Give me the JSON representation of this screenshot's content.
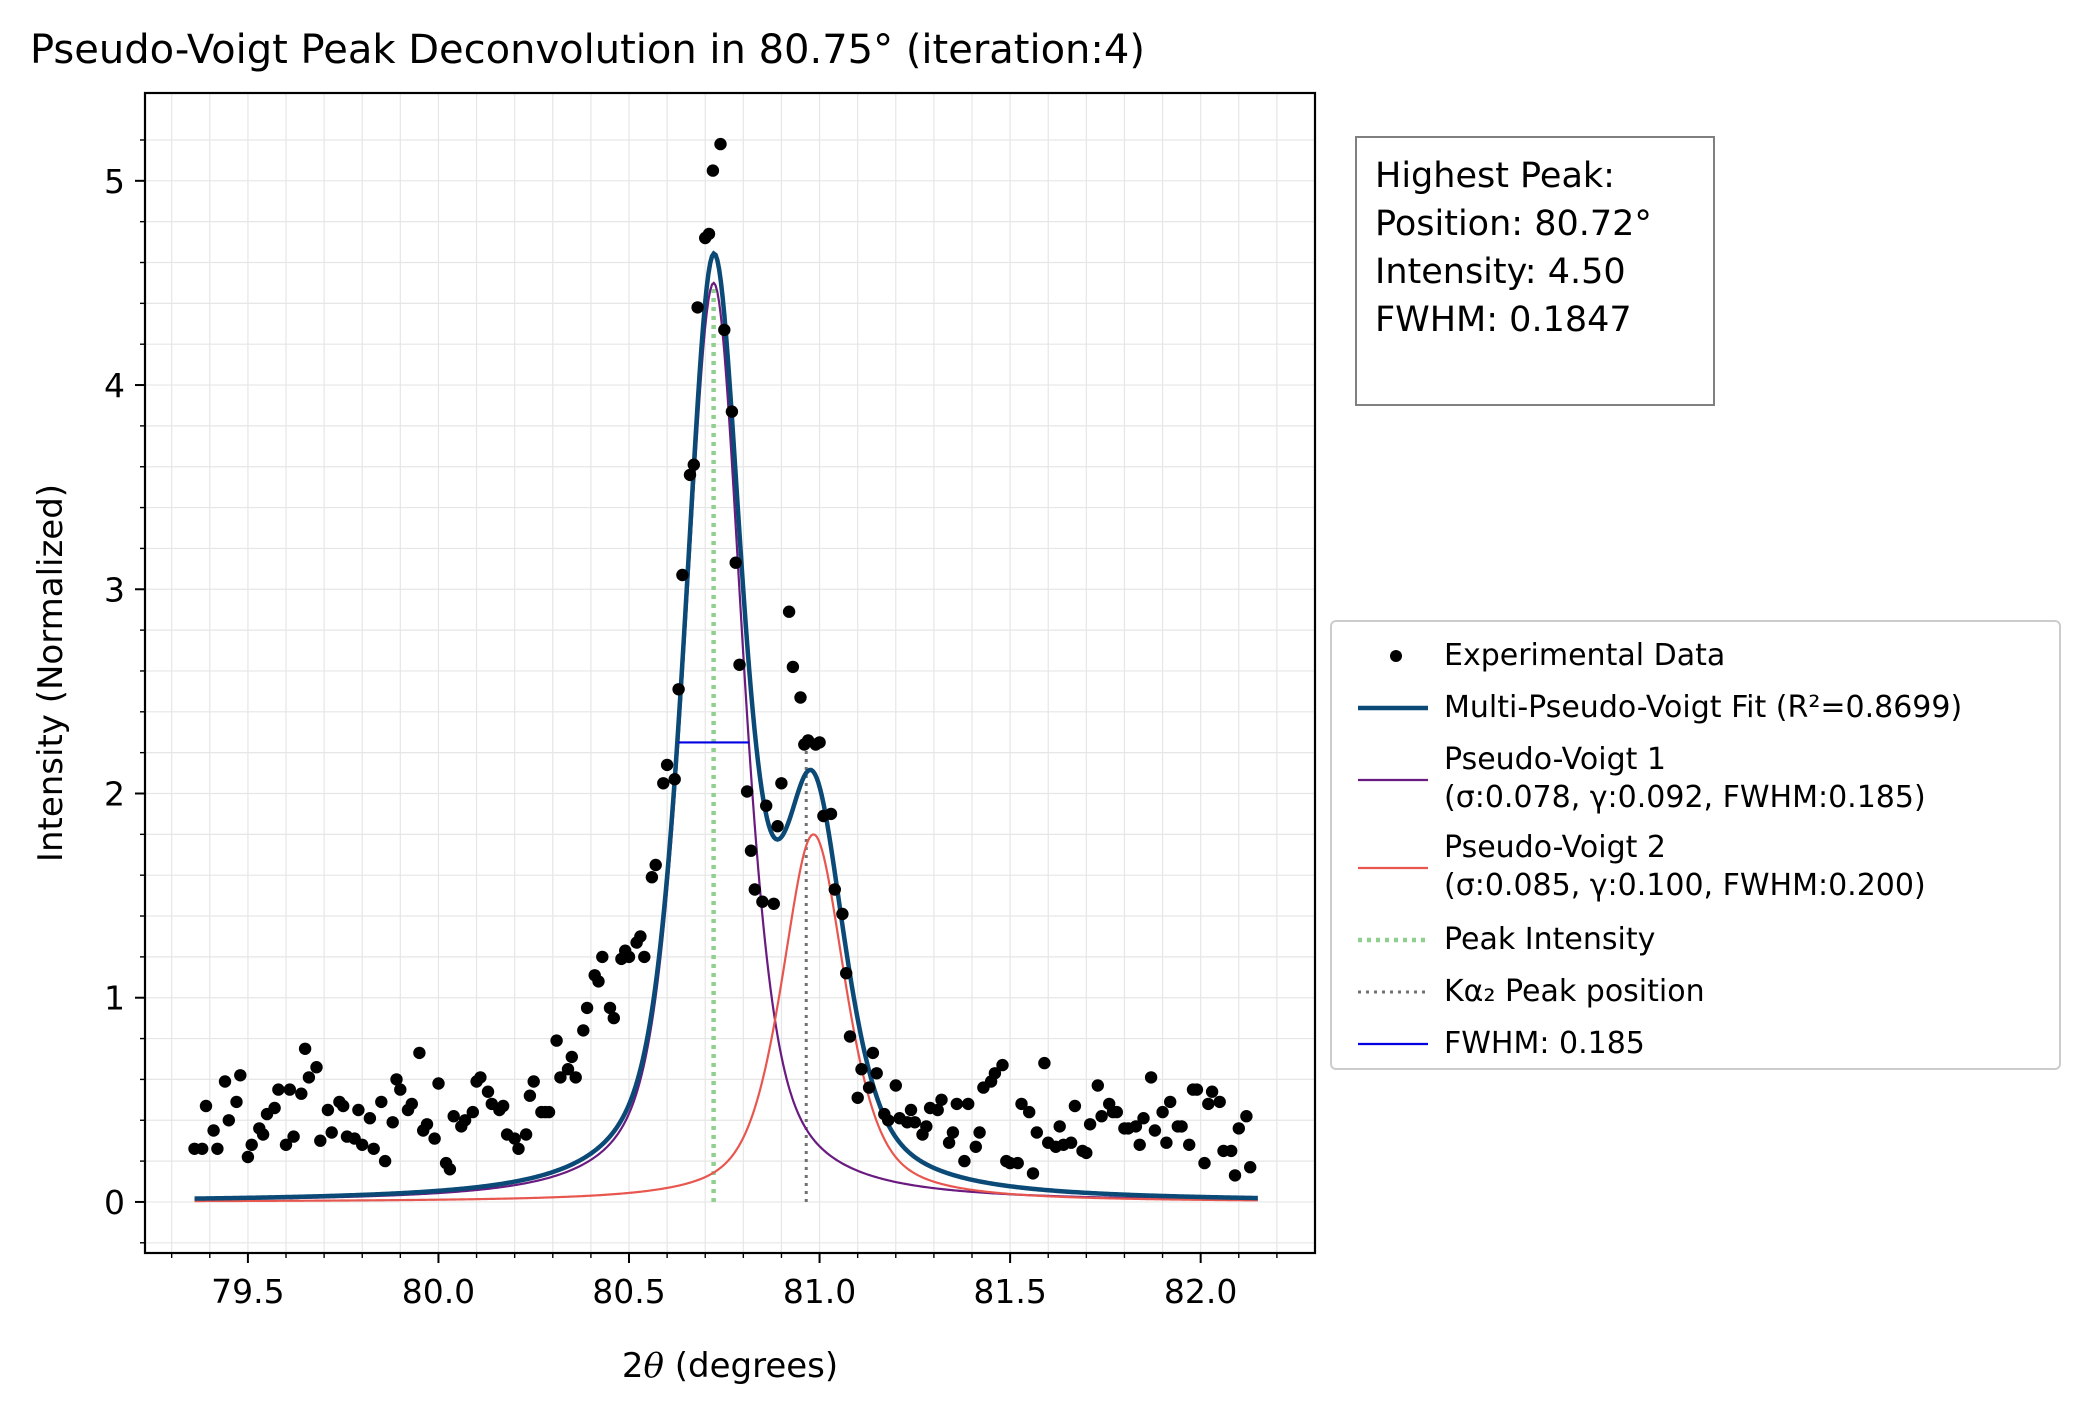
{
  "title": "Pseudo-Voigt Peak Deconvolution in 80.75° (iteration:4)",
  "info_box": {
    "lines": [
      "Highest Peak:",
      "Position: 80.72°",
      "Intensity: 4.50",
      "FWHM: 0.1847"
    ]
  },
  "legend": {
    "items": [
      {
        "label": "Experimental Data",
        "kind": "marker",
        "color": "#000000"
      },
      {
        "label": "Multi-Pseudo-Voigt Fit (R²=0.8699)",
        "kind": "line",
        "color": "#0b4a77"
      },
      {
        "label": "Pseudo-Voigt 1",
        "label2": "(σ:0.078, γ:0.092, FWHM:0.185)",
        "kind": "line",
        "color": "#6a1b7f"
      },
      {
        "label": "Pseudo-Voigt 2",
        "label2": "(σ:0.085, γ:0.100, FWHM:0.200)",
        "kind": "line",
        "color": "#e8574f"
      },
      {
        "label": "Peak Intensity",
        "kind": "dotted",
        "color": "#8fd08f"
      },
      {
        "label": "Kα₂ Peak position",
        "kind": "dotted",
        "color": "#707070"
      },
      {
        "label": "FWHM: 0.185",
        "kind": "line",
        "color": "#0000e0"
      }
    ]
  },
  "chart_data": {
    "type": "scatter",
    "title": "Pseudo-Voigt Peak Deconvolution in 80.75° (iteration:4)",
    "xlabel": "2θ (degrees)",
    "ylabel": "Intensity (Normalized)",
    "xlim": [
      79.23,
      82.3
    ],
    "ylim": [
      -0.25,
      5.43
    ],
    "x_ticks": [
      79.5,
      80.0,
      80.5,
      81.0,
      81.5,
      82.0
    ],
    "x_tick_labels": [
      "79.5",
      "80.0",
      "80.5",
      "81.0",
      "81.5",
      "82.0"
    ],
    "y_ticks": [
      0,
      1,
      2,
      3,
      4,
      5
    ],
    "y_tick_labels": [
      "0",
      "1",
      "2",
      "3",
      "4",
      "5"
    ],
    "grid": true,
    "legend_position": "right, outside",
    "scatter": {
      "name": "Experimental Data",
      "color": "#000000",
      "points": [
        [
          79.36,
          0.26
        ],
        [
          79.38,
          0.26
        ],
        [
          79.39,
          0.47
        ],
        [
          79.41,
          0.35
        ],
        [
          79.42,
          0.26
        ],
        [
          79.44,
          0.59
        ],
        [
          79.45,
          0.4
        ],
        [
          79.47,
          0.49
        ],
        [
          79.48,
          0.62
        ],
        [
          79.5,
          0.22
        ],
        [
          79.51,
          0.28
        ],
        [
          79.53,
          0.36
        ],
        [
          79.54,
          0.33
        ],
        [
          79.55,
          0.43
        ],
        [
          79.57,
          0.46
        ],
        [
          79.58,
          0.55
        ],
        [
          79.6,
          0.28
        ],
        [
          79.61,
          0.55
        ],
        [
          79.62,
          0.32
        ],
        [
          79.64,
          0.53
        ],
        [
          79.65,
          0.75
        ],
        [
          79.66,
          0.61
        ],
        [
          79.68,
          0.66
        ],
        [
          79.69,
          0.3
        ],
        [
          79.71,
          0.45
        ],
        [
          79.72,
          0.34
        ],
        [
          79.74,
          0.49
        ],
        [
          79.75,
          0.47
        ],
        [
          79.76,
          0.32
        ],
        [
          79.78,
          0.31
        ],
        [
          79.79,
          0.45
        ],
        [
          79.8,
          0.28
        ],
        [
          79.82,
          0.41
        ],
        [
          79.83,
          0.26
        ],
        [
          79.85,
          0.49
        ],
        [
          79.86,
          0.2
        ],
        [
          79.88,
          0.39
        ],
        [
          79.89,
          0.6
        ],
        [
          79.9,
          0.55
        ],
        [
          79.92,
          0.45
        ],
        [
          79.93,
          0.48
        ],
        [
          79.95,
          0.73
        ],
        [
          79.96,
          0.35
        ],
        [
          79.97,
          0.38
        ],
        [
          79.99,
          0.31
        ],
        [
          80.0,
          0.58
        ],
        [
          80.02,
          0.19
        ],
        [
          80.03,
          0.16
        ],
        [
          80.04,
          0.42
        ],
        [
          80.06,
          0.37
        ],
        [
          80.07,
          0.4
        ],
        [
          80.09,
          0.44
        ],
        [
          80.1,
          0.59
        ],
        [
          80.11,
          0.61
        ],
        [
          80.13,
          0.54
        ],
        [
          80.14,
          0.48
        ],
        [
          80.16,
          0.45
        ],
        [
          80.17,
          0.47
        ],
        [
          80.18,
          0.33
        ],
        [
          80.2,
          0.31
        ],
        [
          80.21,
          0.26
        ],
        [
          80.23,
          0.33
        ],
        [
          80.24,
          0.52
        ],
        [
          80.25,
          0.59
        ],
        [
          80.27,
          0.44
        ],
        [
          80.28,
          0.44
        ],
        [
          80.29,
          0.44
        ],
        [
          80.31,
          0.79
        ],
        [
          80.32,
          0.61
        ],
        [
          80.34,
          0.65
        ],
        [
          80.35,
          0.71
        ],
        [
          80.36,
          0.61
        ],
        [
          80.38,
          0.84
        ],
        [
          80.39,
          0.95
        ],
        [
          80.41,
          1.11
        ],
        [
          80.42,
          1.08
        ],
        [
          80.43,
          1.2
        ],
        [
          80.45,
          0.95
        ],
        [
          80.46,
          0.9
        ],
        [
          80.48,
          1.19
        ],
        [
          80.49,
          1.23
        ],
        [
          80.5,
          1.2
        ],
        [
          80.52,
          1.27
        ],
        [
          80.53,
          1.3
        ],
        [
          80.54,
          1.2
        ],
        [
          80.56,
          1.59
        ],
        [
          80.57,
          1.65
        ],
        [
          80.59,
          2.05
        ],
        [
          80.6,
          2.14
        ],
        [
          80.62,
          2.07
        ],
        [
          80.63,
          2.51
        ],
        [
          80.64,
          3.07
        ],
        [
          80.66,
          3.56
        ],
        [
          80.67,
          3.61
        ],
        [
          80.68,
          4.38
        ],
        [
          80.7,
          4.72
        ],
        [
          80.71,
          4.74
        ],
        [
          80.72,
          5.05
        ],
        [
          80.74,
          5.18
        ],
        [
          80.75,
          4.27
        ],
        [
          80.77,
          3.87
        ],
        [
          80.78,
          3.13
        ],
        [
          80.79,
          2.63
        ],
        [
          80.81,
          2.01
        ],
        [
          80.82,
          1.72
        ],
        [
          80.83,
          1.53
        ],
        [
          80.85,
          1.47
        ],
        [
          80.86,
          1.94
        ],
        [
          80.88,
          1.46
        ],
        [
          80.89,
          1.84
        ],
        [
          80.9,
          2.05
        ],
        [
          80.92,
          2.89
        ],
        [
          80.93,
          2.62
        ],
        [
          80.95,
          2.47
        ],
        [
          80.96,
          2.24
        ],
        [
          80.97,
          2.26
        ],
        [
          80.99,
          2.24
        ],
        [
          81.0,
          2.25
        ],
        [
          81.01,
          1.89
        ],
        [
          81.03,
          1.9
        ],
        [
          81.04,
          1.53
        ],
        [
          81.06,
          1.41
        ],
        [
          81.07,
          1.12
        ],
        [
          81.08,
          0.81
        ],
        [
          81.1,
          0.51
        ],
        [
          81.11,
          0.65
        ],
        [
          81.13,
          0.56
        ],
        [
          81.14,
          0.73
        ],
        [
          81.15,
          0.63
        ],
        [
          81.17,
          0.43
        ],
        [
          81.18,
          0.4
        ],
        [
          81.2,
          0.57
        ],
        [
          81.21,
          0.41
        ],
        [
          81.23,
          0.39
        ],
        [
          81.24,
          0.45
        ],
        [
          81.25,
          0.39
        ],
        [
          81.27,
          0.33
        ],
        [
          81.28,
          0.37
        ],
        [
          81.29,
          0.46
        ],
        [
          81.31,
          0.45
        ],
        [
          81.32,
          0.5
        ],
        [
          81.34,
          0.29
        ],
        [
          81.35,
          0.34
        ],
        [
          81.36,
          0.48
        ],
        [
          81.38,
          0.2
        ],
        [
          81.39,
          0.48
        ],
        [
          81.41,
          0.27
        ],
        [
          81.42,
          0.34
        ],
        [
          81.43,
          0.56
        ],
        [
          81.45,
          0.59
        ],
        [
          81.46,
          0.63
        ],
        [
          81.48,
          0.67
        ],
        [
          81.49,
          0.2
        ],
        [
          81.5,
          0.19
        ],
        [
          81.52,
          0.19
        ],
        [
          81.53,
          0.48
        ],
        [
          81.55,
          0.44
        ],
        [
          81.56,
          0.14
        ],
        [
          81.57,
          0.34
        ],
        [
          81.59,
          0.68
        ],
        [
          81.6,
          0.29
        ],
        [
          81.62,
          0.27
        ],
        [
          81.63,
          0.37
        ],
        [
          81.64,
          0.28
        ],
        [
          81.66,
          0.29
        ],
        [
          81.67,
          0.47
        ],
        [
          81.69,
          0.25
        ],
        [
          81.7,
          0.24
        ],
        [
          81.71,
          0.38
        ],
        [
          81.73,
          0.57
        ],
        [
          81.74,
          0.42
        ],
        [
          81.76,
          0.48
        ],
        [
          81.77,
          0.44
        ],
        [
          81.78,
          0.44
        ],
        [
          81.8,
          0.36
        ],
        [
          81.81,
          0.36
        ],
        [
          81.83,
          0.37
        ],
        [
          81.84,
          0.28
        ],
        [
          81.85,
          0.41
        ],
        [
          81.87,
          0.61
        ],
        [
          81.88,
          0.35
        ],
        [
          81.9,
          0.44
        ],
        [
          81.91,
          0.29
        ],
        [
          81.92,
          0.49
        ],
        [
          81.94,
          0.37
        ],
        [
          81.95,
          0.37
        ],
        [
          81.97,
          0.28
        ],
        [
          81.98,
          0.55
        ],
        [
          81.99,
          0.55
        ],
        [
          82.01,
          0.19
        ],
        [
          82.02,
          0.48
        ],
        [
          82.03,
          0.54
        ],
        [
          82.05,
          0.49
        ],
        [
          82.06,
          0.25
        ],
        [
          82.08,
          0.25
        ],
        [
          82.09,
          0.13
        ],
        [
          82.1,
          0.36
        ],
        [
          82.12,
          0.42
        ],
        [
          82.13,
          0.17
        ]
      ]
    },
    "fit_range": [
      79.36,
      82.15
    ],
    "components": [
      {
        "name": "Pseudo-Voigt 1",
        "center": 80.722,
        "amplitude": 4.5,
        "fwhm": 0.185,
        "eta": 0.6,
        "color": "#6a1b7f"
      },
      {
        "name": "Pseudo-Voigt 2",
        "center": 80.984,
        "amplitude": 1.8,
        "fwhm": 0.2,
        "eta": 0.6,
        "color": "#e8574f"
      }
    ],
    "fit": {
      "name": "Multi-Pseudo-Voigt Fit (R²=0.8699)",
      "color": "#0b4a77"
    },
    "peak_intensity_line": {
      "x": 80.722,
      "y_top": 4.5,
      "color": "#8fd08f"
    },
    "ka2_line": {
      "x": 80.965,
      "y_top": 2.3,
      "color": "#707070"
    },
    "fwhm_segment": {
      "x_start": 80.63,
      "x_end": 80.815,
      "y": 2.25,
      "color": "#0000e0"
    }
  }
}
